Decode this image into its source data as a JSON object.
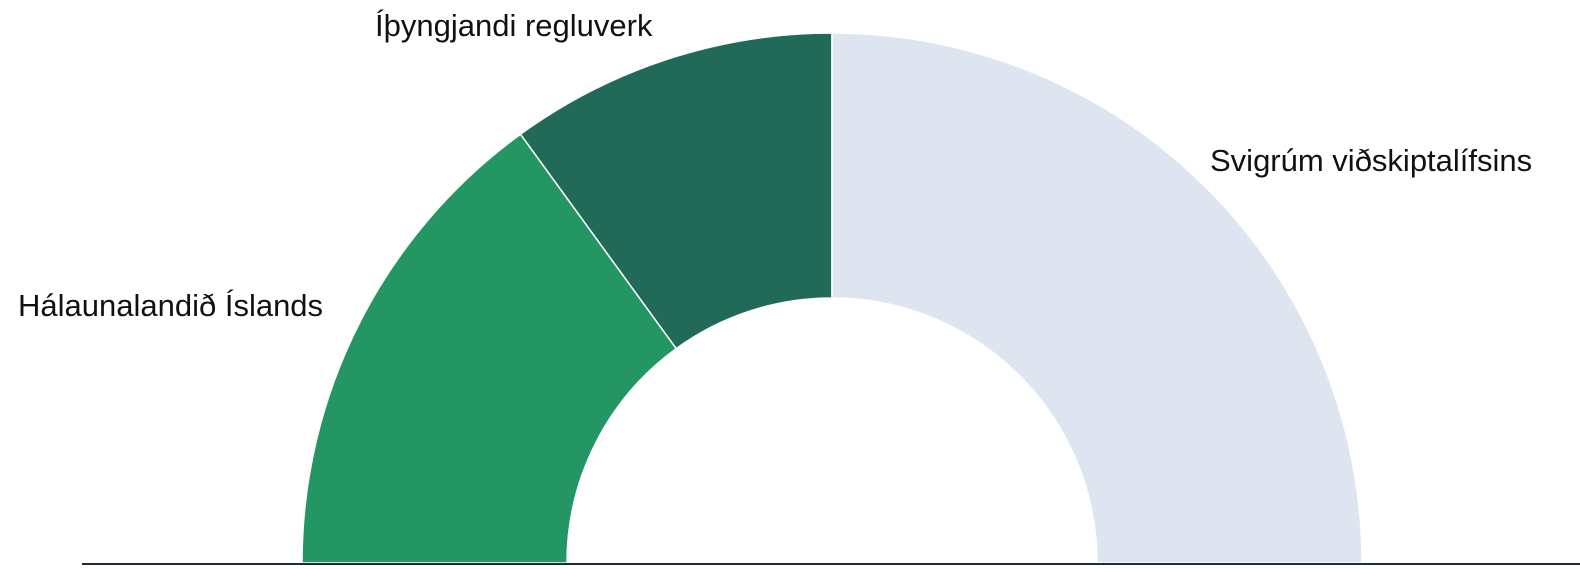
{
  "chart_data": {
    "type": "pie",
    "categories": [
      "Hálaunalandið Íslands",
      "Íþyngjandi regluverk",
      "Svigrúm viðskiptalífsins"
    ],
    "values": [
      30,
      20,
      50
    ],
    "colors": [
      "#239663",
      "#206a57",
      "#dfe5f0"
    ]
  }
}
